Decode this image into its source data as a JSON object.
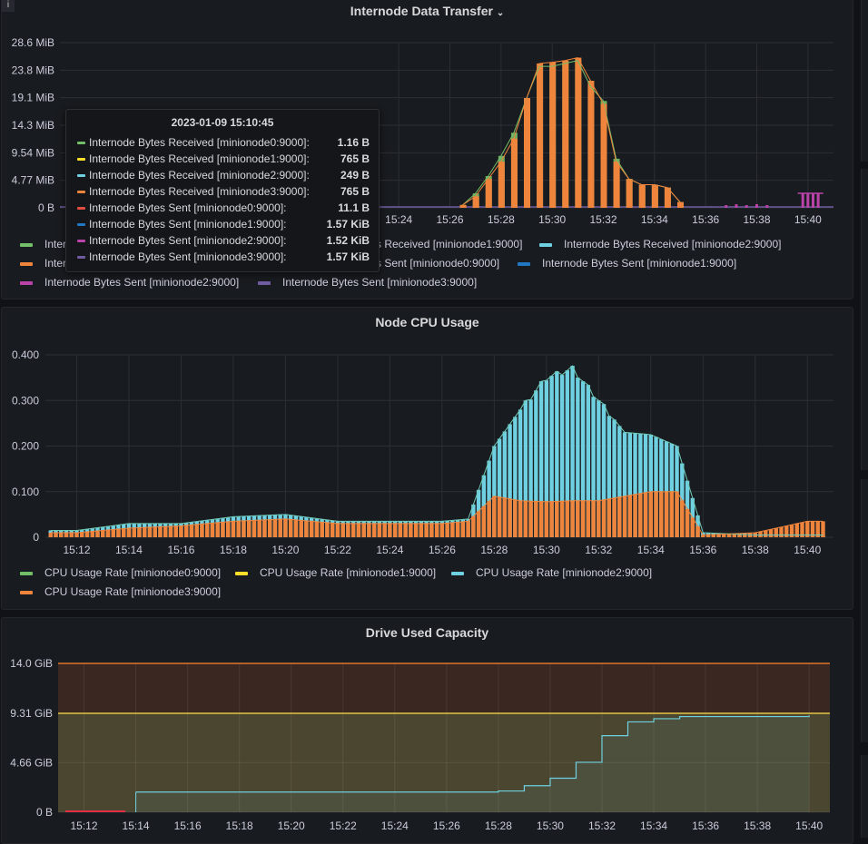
{
  "panels": {
    "transfer": {
      "title": "Internode Data Transfer",
      "title_icon": "chevron-down-icon",
      "y_ticks": [
        "28.6 MiB",
        "23.8 MiB",
        "19.1 MiB",
        "14.3 MiB",
        "9.54 MiB",
        "4.77 MiB",
        "0 B"
      ],
      "x_ticks": [
        "15:24",
        "15:26",
        "15:28",
        "15:30",
        "15:32",
        "15:34",
        "15:36",
        "15:38",
        "15:40"
      ],
      "legend": [
        {
          "label": "Internode Bytes Received [minionode0:9000]",
          "color": "#73bf69"
        },
        {
          "label": "Internode Bytes Received [minionode1:9000]",
          "color": "#fade2a"
        },
        {
          "label": "Internode Bytes Received [minionode2:9000]",
          "color": "#6ed0e0"
        },
        {
          "label": "Internode Bytes Received [minionode3:9000]",
          "color": "#ef843c"
        },
        {
          "label": "Internode Bytes Sent [minionode0:9000]",
          "color": "#e24d42"
        },
        {
          "label": "Internode Bytes Sent [minionode1:9000]",
          "color": "#1f78c1"
        },
        {
          "label": "Internode Bytes Sent [minionode2:9000]",
          "color": "#ba43a9"
        },
        {
          "label": "Internode Bytes Sent [minionode3:9000]",
          "color": "#705da0"
        }
      ],
      "legend_visible_fragments": [
        "Inter",
        "Inter",
        "s Received [minionode1:9000]",
        "s Sent [minionode0:9000]"
      ],
      "tooltip": {
        "time": "2023-01-09 15:10:45",
        "rows": [
          {
            "label": "Internode Bytes Received [minionode0:9000]:",
            "value": "1.16 B",
            "color": "#73bf69"
          },
          {
            "label": "Internode Bytes Received [minionode1:9000]:",
            "value": "765 B",
            "color": "#fade2a"
          },
          {
            "label": "Internode Bytes Received [minionode2:9000]:",
            "value": "249 B",
            "color": "#6ed0e0"
          },
          {
            "label": "Internode Bytes Received [minionode3:9000]:",
            "value": "765 B",
            "color": "#ef843c"
          },
          {
            "label": "Internode Bytes Sent [minionode0:9000]:",
            "value": "11.1 B",
            "color": "#e24d42"
          },
          {
            "label": "Internode Bytes Sent [minionode1:9000]:",
            "value": "1.57 KiB",
            "color": "#1f78c1"
          },
          {
            "label": "Internode Bytes Sent [minionode2:9000]:",
            "value": "1.52 KiB",
            "color": "#ba43a9"
          },
          {
            "label": "Internode Bytes Sent [minionode3:9000]:",
            "value": "1.57 KiB",
            "color": "#705da0"
          }
        ]
      }
    },
    "cpu": {
      "title": "Node CPU Usage",
      "y_ticks": [
        "0.400",
        "0.300",
        "0.200",
        "0.100",
        "0"
      ],
      "x_ticks": [
        "15:12",
        "15:14",
        "15:16",
        "15:18",
        "15:20",
        "15:22",
        "15:24",
        "15:26",
        "15:28",
        "15:30",
        "15:32",
        "15:34",
        "15:36",
        "15:38",
        "15:40"
      ],
      "legend": [
        {
          "label": "CPU Usage Rate [minionode0:9000]",
          "color": "#73bf69"
        },
        {
          "label": "CPU Usage Rate [minionode1:9000]",
          "color": "#fade2a"
        },
        {
          "label": "CPU Usage Rate [minionode2:9000]",
          "color": "#6ed0e0"
        },
        {
          "label": "CPU Usage Rate [minionode3:9000]",
          "color": "#ef843c"
        }
      ]
    },
    "drive": {
      "title": "Drive Used Capacity",
      "y_ticks": [
        "14.0 GiB",
        "9.31 GiB",
        "4.66 GiB",
        "0 B"
      ],
      "x_ticks": [
        "15:12",
        "15:14",
        "15:16",
        "15:18",
        "15:20",
        "15:22",
        "15:24",
        "15:26",
        "15:28",
        "15:30",
        "15:32",
        "15:34",
        "15:36",
        "15:38",
        "15:40"
      ]
    }
  },
  "chart_data": [
    {
      "type": "bar",
      "title": "Internode Data Transfer",
      "unit": "MiB",
      "x": [
        "15:26:30",
        "15:27:00",
        "15:27:30",
        "15:28:00",
        "15:28:30",
        "15:29:00",
        "15:29:30",
        "15:30:00",
        "15:30:30",
        "15:31:00",
        "15:31:30",
        "15:32:00",
        "15:32:30",
        "15:33:00",
        "15:33:30",
        "15:34:00",
        "15:34:30",
        "15:35:00"
      ],
      "series": [
        {
          "name": "Internode Bytes Received [minionode3:9000]",
          "values": [
            0.5,
            2,
            5,
            8,
            12,
            19,
            25,
            25.2,
            25.5,
            26,
            22,
            18,
            8,
            5,
            4,
            4,
            3.5,
            1
          ]
        },
        {
          "name": "Internode Bytes Received [minionode0:9000]",
          "values": [
            0.5,
            2.5,
            5.5,
            9,
            13,
            19,
            24.5,
            24.5,
            25,
            25.5,
            21,
            18.5,
            8.5,
            5,
            4,
            4,
            3.5,
            1
          ]
        }
      ],
      "ylim": [
        0,
        28.6
      ]
    },
    {
      "type": "bar",
      "title": "Node CPU Usage",
      "x": [
        "15:12",
        "15:14",
        "15:16",
        "15:18",
        "15:20",
        "15:22",
        "15:24",
        "15:26",
        "15:27",
        "15:28",
        "15:29",
        "15:30",
        "15:31",
        "15:32",
        "15:33",
        "15:34",
        "15:35",
        "15:36",
        "15:38",
        "15:40"
      ],
      "series": [
        {
          "name": "CPU Usage Rate [minionode2:9000]",
          "values": [
            0.015,
            0.03,
            0.03,
            0.045,
            0.05,
            0.035,
            0.035,
            0.035,
            0.04,
            0.2,
            0.28,
            0.35,
            0.37,
            0.3,
            0.23,
            0.225,
            0.2,
            0.01,
            0.005,
            0.005
          ]
        },
        {
          "name": "CPU Usage Rate [minionode3:9000]",
          "values": [
            0.01,
            0.02,
            0.025,
            0.035,
            0.04,
            0.03,
            0.03,
            0.03,
            0.035,
            0.09,
            0.08,
            0.078,
            0.08,
            0.08,
            0.09,
            0.1,
            0.1,
            0.005,
            0.01,
            0.035
          ]
        }
      ],
      "ylim": [
        0,
        0.4
      ]
    },
    {
      "type": "line",
      "title": "Drive Used Capacity",
      "unit": "GiB",
      "x": [
        "15:14",
        "15:27",
        "15:28",
        "15:29",
        "15:30",
        "15:31",
        "15:32",
        "15:33",
        "15:34",
        "15:35",
        "15:40"
      ],
      "series": [
        {
          "name": "Used",
          "values": [
            1.9,
            1.9,
            2.0,
            2.5,
            3.2,
            4.7,
            7.2,
            8.5,
            8.8,
            9.0,
            9.1
          ]
        }
      ],
      "thresholds": [
        9.31,
        14.0
      ],
      "ylim": [
        0,
        14.0
      ]
    }
  ]
}
